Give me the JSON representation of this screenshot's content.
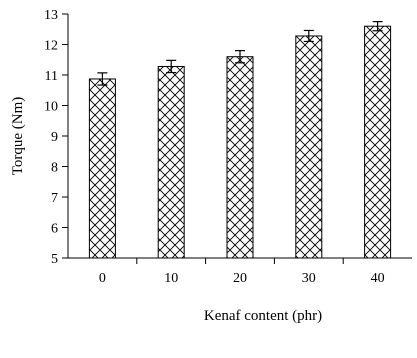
{
  "chart_data": {
    "type": "bar",
    "categories": [
      "0",
      "10",
      "20",
      "30",
      "40"
    ],
    "values": [
      10.87,
      11.28,
      11.6,
      12.28,
      12.6
    ],
    "errors": [
      0.2,
      0.2,
      0.2,
      0.18,
      0.15
    ],
    "xlabel": "Kenaf content  (phr)",
    "ylabel": "Torque (Nm)",
    "ylim": [
      5,
      13
    ],
    "yticks": [
      "5",
      "6",
      "7",
      "8",
      "9",
      "10",
      "11",
      "12",
      "13"
    ],
    "grid": false,
    "bar_fill": "crosshatch",
    "colors": {
      "stroke": "#000000",
      "background": "#ffffff"
    }
  }
}
